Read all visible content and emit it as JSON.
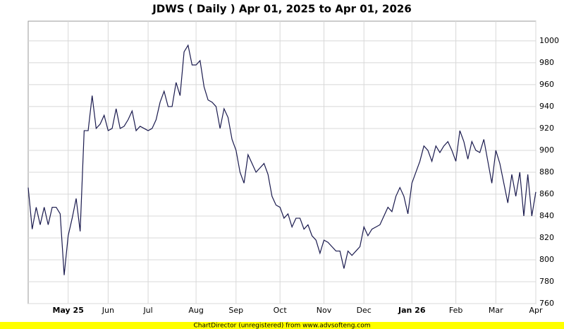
{
  "chart_data": {
    "type": "line",
    "title": "JDWS ( Daily ) Apr 01, 2025 to Apr 01, 2026",
    "footer": "ChartDirector (unregistered) from www.advsofteng.com",
    "color": "#1a1a4e",
    "grid": true,
    "xlim": [
      0,
      127
    ],
    "xticks": [
      {
        "value": 10,
        "label": "May 25"
      },
      {
        "value": 20,
        "label": "Jun"
      },
      {
        "value": 30,
        "label": "Jul"
      },
      {
        "value": 42,
        "label": "Aug"
      },
      {
        "value": 52,
        "label": "Sep"
      },
      {
        "value": 63,
        "label": "Oct"
      },
      {
        "value": 74,
        "label": "Nov"
      },
      {
        "value": 84,
        "label": "Dec"
      },
      {
        "value": 96,
        "label": "Jan 26"
      },
      {
        "value": 107,
        "label": "Feb"
      },
      {
        "value": 117,
        "label": "Mar"
      },
      {
        "value": 127,
        "label": "Apr"
      }
    ],
    "ylim": [
      760,
      1018
    ],
    "yticks": [
      760,
      780,
      800,
      820,
      840,
      860,
      880,
      900,
      920,
      940,
      960,
      980,
      1000
    ],
    "values": [
      866,
      828,
      848,
      832,
      848,
      832,
      848,
      848,
      842,
      786,
      822,
      838,
      856,
      826,
      918,
      918,
      950,
      920,
      924,
      932,
      918,
      920,
      938,
      920,
      922,
      928,
      936,
      918,
      922,
      920,
      918,
      920,
      928,
      944,
      954,
      940,
      940,
      962,
      950,
      990,
      996,
      978,
      978,
      982,
      958,
      946,
      944,
      940,
      920,
      938,
      930,
      910,
      900,
      880,
      870,
      896,
      888,
      880,
      884,
      888,
      878,
      858,
      850,
      848,
      838,
      842,
      830,
      838,
      838,
      828,
      832,
      822,
      818,
      806,
      818,
      816,
      812,
      808,
      808,
      792,
      808,
      804,
      808,
      812,
      830,
      822,
      828,
      830,
      832,
      840,
      848,
      844,
      858,
      866,
      858,
      842,
      870,
      880,
      890,
      904,
      900,
      890,
      904,
      898,
      904,
      908,
      900,
      890,
      918,
      908,
      892,
      908,
      900,
      898,
      910,
      890,
      870,
      900,
      888,
      870,
      852,
      878,
      858,
      880,
      840,
      878,
      840,
      862
    ]
  }
}
